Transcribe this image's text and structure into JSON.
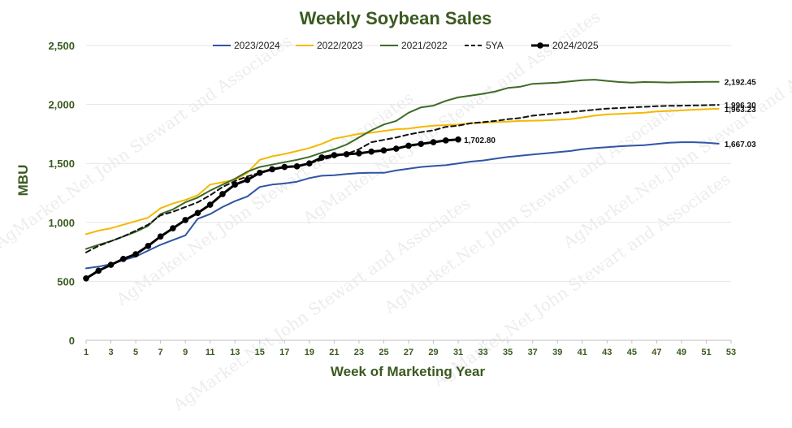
{
  "chart_data": {
    "type": "line",
    "title": "Weekly Soybean Sales",
    "xlabel": "Week of Marketing Year",
    "ylabel": "MBU",
    "xlim": [
      1,
      53
    ],
    "ylim": [
      0,
      2500
    ],
    "x_ticks": [
      1,
      3,
      5,
      7,
      9,
      11,
      13,
      15,
      17,
      19,
      21,
      23,
      25,
      27,
      29,
      31,
      33,
      35,
      37,
      39,
      41,
      43,
      45,
      47,
      49,
      51,
      53
    ],
    "y_ticks": [
      0,
      500,
      1000,
      1500,
      2000,
      2500
    ],
    "y_tick_labels": [
      "0",
      "500",
      "1,000",
      "1,500",
      "2,000",
      "2,500"
    ],
    "legend_position": "top-center",
    "watermark": "AgMarket.Net  John Stewart and Associates",
    "series": [
      {
        "name": "2023/2024",
        "color": "#2f55a4",
        "dashed": false,
        "markers": false,
        "end_label": "1,667.03",
        "values": [
          610,
          625,
          645,
          680,
          710,
          760,
          810,
          850,
          890,
          1030,
          1070,
          1130,
          1180,
          1220,
          1300,
          1320,
          1330,
          1345,
          1375,
          1395,
          1400,
          1410,
          1418,
          1420,
          1420,
          1440,
          1455,
          1470,
          1478,
          1485,
          1500,
          1515,
          1525,
          1540,
          1555,
          1565,
          1575,
          1585,
          1595,
          1605,
          1620,
          1630,
          1638,
          1645,
          1650,
          1655,
          1665,
          1675,
          1680,
          1680,
          1675,
          1667.03
        ]
      },
      {
        "name": "2022/2023",
        "color": "#f5b800",
        "dashed": false,
        "markers": false,
        "end_label": "1,963.23",
        "values": [
          900,
          930,
          950,
          980,
          1010,
          1040,
          1120,
          1160,
          1190,
          1230,
          1320,
          1340,
          1360,
          1420,
          1530,
          1560,
          1580,
          1605,
          1630,
          1665,
          1710,
          1730,
          1750,
          1760,
          1775,
          1790,
          1795,
          1810,
          1820,
          1825,
          1830,
          1840,
          1845,
          1850,
          1855,
          1860,
          1862,
          1865,
          1870,
          1875,
          1890,
          1905,
          1915,
          1920,
          1925,
          1930,
          1940,
          1945,
          1950,
          1955,
          1960,
          1963.23
        ]
      },
      {
        "name": "2021/2022",
        "color": "#3d6b24",
        "dashed": false,
        "markers": false,
        "end_label": "2,192.45",
        "values": [
          775,
          810,
          840,
          880,
          920,
          970,
          1070,
          1110,
          1170,
          1210,
          1270,
          1320,
          1370,
          1430,
          1470,
          1490,
          1510,
          1530,
          1555,
          1590,
          1620,
          1660,
          1720,
          1780,
          1830,
          1860,
          1930,
          1975,
          1990,
          2030,
          2060,
          2075,
          2090,
          2110,
          2140,
          2150,
          2175,
          2180,
          2185,
          2195,
          2205,
          2210,
          2200,
          2190,
          2185,
          2190,
          2188,
          2186,
          2188,
          2190,
          2192,
          2192.45
        ]
      },
      {
        "name": "5YA",
        "color": "#111111",
        "dashed": true,
        "markers": false,
        "end_label": "1,996.30",
        "values": [
          745,
          800,
          840,
          880,
          930,
          980,
          1060,
          1090,
          1130,
          1170,
          1230,
          1300,
          1350,
          1390,
          1420,
          1450,
          1470,
          1480,
          1500,
          1530,
          1560,
          1580,
          1620,
          1680,
          1700,
          1720,
          1745,
          1765,
          1780,
          1810,
          1820,
          1840,
          1850,
          1860,
          1875,
          1885,
          1905,
          1915,
          1925,
          1935,
          1945,
          1955,
          1965,
          1970,
          1975,
          1980,
          1985,
          1988,
          1990,
          1992,
          1994,
          1996.3
        ]
      },
      {
        "name": "2024/2025",
        "color": "#000000",
        "dashed": false,
        "markers": true,
        "end_label": "1,702.80",
        "values": [
          525,
          590,
          640,
          690,
          730,
          800,
          880,
          950,
          1020,
          1080,
          1150,
          1240,
          1320,
          1360,
          1420,
          1450,
          1470,
          1475,
          1500,
          1550,
          1570,
          1578,
          1585,
          1600,
          1610,
          1625,
          1650,
          1665,
          1680,
          1695,
          1702.8
        ]
      }
    ]
  }
}
